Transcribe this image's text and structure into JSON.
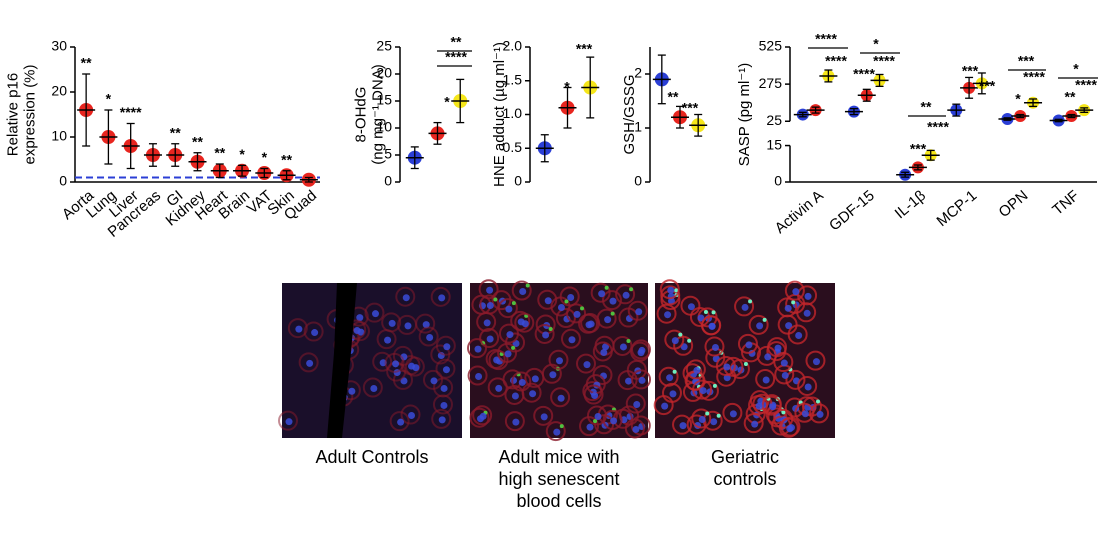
{
  "chart_data": [
    {
      "type": "dot",
      "ylabel": [
        "Relative p16",
        "expression (%)"
      ],
      "ylim": [
        0,
        30
      ],
      "yticks": [
        0,
        10,
        20,
        30
      ],
      "categories": [
        "Aorta",
        "Lung",
        "Liver",
        "Pancreas",
        "GI",
        "Kidney",
        "Heart",
        "Brain",
        "VAT",
        "Skin",
        "Quad"
      ],
      "series": [
        {
          "color": "#e8251f",
          "values": [
            16,
            10,
            8,
            6,
            6,
            4.5,
            2.5,
            2.5,
            2,
            1.5,
            0.5
          ],
          "errors": [
            8,
            6,
            5,
            2.5,
            2.5,
            2,
            1.5,
            1.2,
            1,
            1,
            0.5
          ]
        }
      ],
      "annotations": [
        "**",
        "*",
        "****",
        null,
        "**",
        "**",
        "**",
        "*",
        "*",
        "**",
        null
      ],
      "reference_line": 1,
      "reference_color": "#2b3fd6"
    },
    {
      "type": "dot",
      "ylabel": [
        "8-OHdG",
        "(ng mg⁻¹ DNA)"
      ],
      "ylim": [
        0,
        25
      ],
      "yticks": [
        0,
        5,
        10,
        15,
        20,
        25
      ],
      "series": [
        {
          "color": "#2b3fd6",
          "values": [
            4.5
          ],
          "errors": [
            2
          ]
        },
        {
          "color": "#e8251f",
          "values": [
            9
          ],
          "errors": [
            2
          ]
        },
        {
          "color": "#f5e61a",
          "values": [
            15
          ],
          "errors": [
            4
          ]
        }
      ],
      "annotations": [
        "*",
        "****",
        "**"
      ]
    },
    {
      "type": "dot",
      "ylabel": [
        "HNE adduct (µg ml⁻¹)"
      ],
      "ylim": [
        0,
        2
      ],
      "yticks": [
        0,
        {
          "value": 0.5,
          "label": "0.5"
        },
        {
          "value": 1,
          "label": "1.0"
        },
        {
          "value": 1.5,
          "label": "1.5"
        },
        {
          "value": 2,
          "label": "2.0"
        }
      ],
      "series": [
        {
          "color": "#2b3fd6",
          "values": [
            0.5
          ],
          "errors": [
            0.2
          ]
        },
        {
          "color": "#e8251f",
          "values": [
            1.1
          ],
          "errors": [
            0.3
          ]
        },
        {
          "color": "#f5e61a",
          "values": [
            1.4
          ],
          "errors": [
            0.45
          ]
        }
      ],
      "annotations": [
        "*",
        "***"
      ]
    },
    {
      "type": "dot",
      "ylabel": [
        "GSH/GSSG"
      ],
      "ylim": [
        0,
        2.5
      ],
      "yticks": [
        0,
        1,
        2
      ],
      "series": [
        {
          "color": "#2b3fd6",
          "values": [
            1.9
          ],
          "errors": [
            0.45
          ]
        },
        {
          "color": "#e8251f",
          "values": [
            1.2
          ],
          "errors": [
            0.2
          ]
        },
        {
          "color": "#f5e61a",
          "values": [
            1.05
          ],
          "errors": [
            0.2
          ]
        }
      ],
      "annotations": [
        "**",
        "***"
      ]
    },
    {
      "type": "dot",
      "ylabel": [
        "SASP (pg ml⁻¹)"
      ],
      "ylim": [
        0,
        525
      ],
      "ybreak": [
        15,
        25
      ],
      "yticks": [
        0,
        15,
        25,
        275,
        525
      ],
      "categories": [
        "Activin A",
        "GDF-15",
        "IL-1β",
        "MCP-1",
        "OPN",
        "TNF"
      ],
      "series": [
        {
          "color": "#2b3fd6",
          "values": [
            70,
            90,
            3,
            100,
            40,
            30
          ],
          "errors": [
            15,
            20,
            1,
            40,
            8,
            8
          ]
        },
        {
          "color": "#e8251f",
          "values": [
            100,
            200,
            6,
            250,
            60,
            60
          ],
          "errors": [
            20,
            40,
            1,
            70,
            10,
            10
          ]
        },
        {
          "color": "#f5e61a",
          "values": [
            330,
            300,
            11,
            280,
            150,
            100
          ],
          "errors": [
            40,
            40,
            2,
            70,
            25,
            15
          ]
        }
      ],
      "annotations": [
        "****",
        "****",
        "*",
        "****",
        "****",
        "**",
        "****",
        "***",
        "***",
        "***",
        "***",
        "****",
        "*",
        "*",
        "****",
        "**"
      ]
    }
  ],
  "images": [
    {
      "caption": "Adult Controls"
    },
    {
      "caption": "Adult mice with high senescent blood cells"
    },
    {
      "caption": "Geriatric controls"
    }
  ]
}
